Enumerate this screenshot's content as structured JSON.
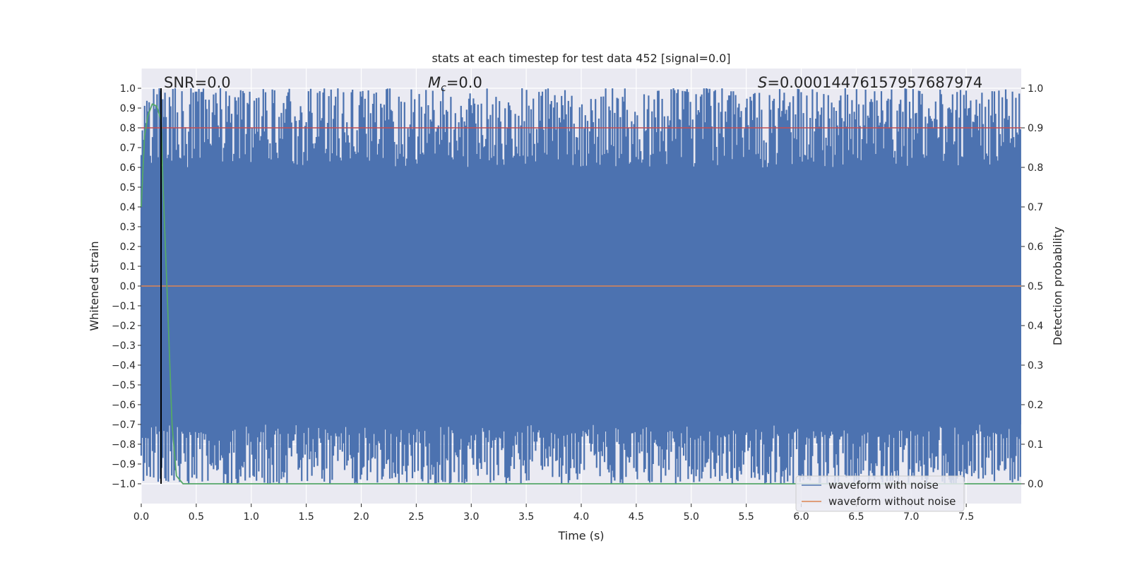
{
  "chart_data": {
    "type": "line",
    "title": "stats at each timestep for test data 452 [signal=0.0]",
    "xlabel": "Time (s)",
    "ylabel_left": "Whitened strain",
    "ylabel_right": "Detection probability",
    "xlim": [
      0.0,
      8.0
    ],
    "ylim_left": [
      -1.1,
      1.1
    ],
    "ylim_right": [
      -0.05,
      1.05
    ],
    "x_ticks": [
      "0.0",
      "0.5",
      "1.0",
      "1.5",
      "2.0",
      "2.5",
      "3.0",
      "3.5",
      "4.0",
      "4.5",
      "5.0",
      "5.5",
      "6.0",
      "6.5",
      "7.0",
      "7.5"
    ],
    "y_ticks_left": [
      "1.0",
      "0.9",
      "0.8",
      "0.7",
      "0.6",
      "0.5",
      "0.4",
      "0.3",
      "0.2",
      "0.1",
      "0.0",
      "−0.1",
      "−0.2",
      "−0.3",
      "−0.4",
      "−0.5",
      "−0.6",
      "−0.7",
      "−0.8",
      "−0.9",
      "−1.0"
    ],
    "y_ticks_right": [
      "1.0",
      "0.9",
      "0.8",
      "0.7",
      "0.6",
      "0.5",
      "0.4",
      "0.3",
      "0.2",
      "0.1",
      "0.0"
    ],
    "grid": true,
    "annotations": {
      "snr": "SNR=0.0",
      "mc_symbol": "M",
      "mc_sub": "c",
      "mc_value": "=0.0",
      "s_symbol": "S",
      "s_value": "=0.00014476157957687974"
    },
    "threshold_line": {
      "axis": "right",
      "value": 0.9,
      "color": "#c44e52"
    },
    "marker_line": {
      "x": 0.18,
      "color": "#000000"
    },
    "series": [
      {
        "name": "waveform with noise",
        "color": "#4c72b0",
        "description": "dense whitened noise spanning approximately -1.0 to 1.0 over 0.0 to 8.0 s",
        "envelope": {
          "x_start": 0.0,
          "x_end": 8.0,
          "min": -1.0,
          "max": 1.0
        }
      },
      {
        "name": "waveform without noise",
        "color": "#dd8452",
        "x": [
          0.0,
          8.0
        ],
        "y": [
          0.0,
          0.0
        ]
      },
      {
        "name": "detection probability",
        "axis": "right",
        "color": "#55a868",
        "x": [
          0.0,
          0.03,
          0.06,
          0.1,
          0.14,
          0.18,
          0.2,
          0.24,
          0.28,
          0.32,
          0.38,
          8.0
        ],
        "y": [
          0.7,
          0.88,
          0.93,
          0.96,
          0.955,
          0.92,
          0.74,
          0.45,
          0.15,
          0.02,
          0.0,
          0.0
        ]
      }
    ],
    "legend": {
      "position": "lower-right",
      "entries": [
        {
          "label": "waveform with noise",
          "color": "#4c72b0"
        },
        {
          "label": "waveform without noise",
          "color": "#dd8452"
        }
      ]
    }
  }
}
